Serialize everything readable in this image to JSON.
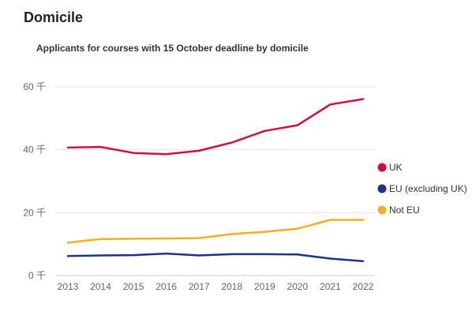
{
  "page": {
    "title": "Domicile"
  },
  "chart_data": {
    "type": "line",
    "title": "Applicants for courses with 15 October deadline by domicile",
    "xlabel": "",
    "ylabel": "",
    "x": [
      "2013",
      "2014",
      "2015",
      "2016",
      "2017",
      "2018",
      "2019",
      "2020",
      "2021",
      "2022"
    ],
    "ylim": [
      0,
      60000
    ],
    "yticks": [
      0,
      20000,
      40000,
      60000
    ],
    "ytick_labels": [
      "0 千",
      "20 千",
      "40 千",
      "60 千"
    ],
    "grid": true,
    "legend_position": "right",
    "series": [
      {
        "name": "UK",
        "color": "#d0103a",
        "values": [
          40700,
          40900,
          39000,
          38600,
          39700,
          42300,
          46000,
          47800,
          54400,
          56100
        ]
      },
      {
        "name": "EU (excluding UK)",
        "color": "#1f3287",
        "values": [
          6200,
          6400,
          6500,
          7000,
          6400,
          6800,
          6800,
          6700,
          5400,
          4600
        ]
      },
      {
        "name": "Not EU",
        "color": "#f2b01e",
        "values": [
          10500,
          11600,
          11700,
          11800,
          11900,
          13200,
          13900,
          14900,
          17700,
          17700
        ]
      }
    ]
  }
}
